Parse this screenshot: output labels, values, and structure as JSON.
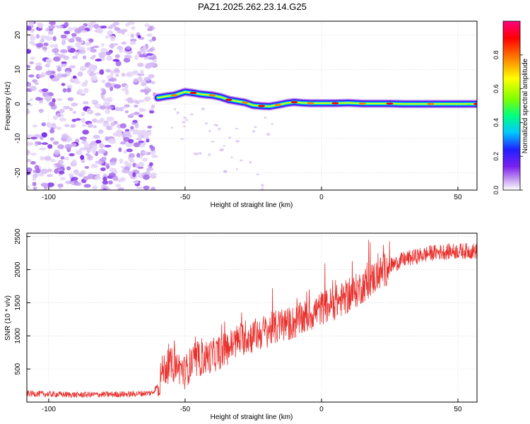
{
  "figure": {
    "title": "PAZ1.2025.262.23.14.G25"
  },
  "chart_data": [
    {
      "type": "heatmap",
      "title": "PAZ1.2025.262.23.14.G25",
      "xlabel": "Height of straight line (km)",
      "ylabel": "Frequency (Hz)",
      "xlim": [
        -108,
        57
      ],
      "ylim": [
        -25,
        24
      ],
      "xticks": [
        -100,
        -50,
        0,
        50
      ],
      "yticks": [
        -20,
        -10,
        0,
        10,
        20
      ],
      "grid": true,
      "colorbar": {
        "label": "Normalized spectral amplitude",
        "range": [
          0,
          1
        ],
        "ticks": [
          0.0,
          0.2,
          0.4,
          0.6,
          0.8
        ],
        "colormap": [
          "#ffffff",
          "#c8a0f0",
          "#7b20f0",
          "#2020ff",
          "#00c8ff",
          "#00ff80",
          "#80ff00",
          "#ffff00",
          "#ff8000",
          "#ff0000",
          "#ff0080"
        ]
      },
      "noise_region": {
        "x_range": [
          -108,
          -61
        ],
        "amplitude": "low"
      },
      "ridge": {
        "x": [
          -60,
          -57,
          -54,
          -50,
          -47,
          -44,
          -40,
          -37,
          -34,
          -31,
          -28,
          -25,
          -22,
          -19,
          -16,
          -13,
          -10,
          -7,
          -4,
          0,
          5,
          10,
          15,
          20,
          25,
          30,
          40,
          50,
          57
        ],
        "y": [
          1.8,
          2.2,
          2.5,
          3.5,
          3.2,
          2.8,
          2.5,
          2.0,
          1.2,
          0.8,
          0.4,
          -0.4,
          -0.6,
          -0.7,
          -0.3,
          0.2,
          0.5,
          0.3,
          0.2,
          0.2,
          0.2,
          0.3,
          0.1,
          0.1,
          0.1,
          0.0,
          0.0,
          0.0,
          0.0
        ]
      }
    },
    {
      "type": "line",
      "xlabel": "Height of straight line (km)",
      "ylabel": "SNR (10 * v/v)",
      "xlim": [
        -108,
        57
      ],
      "ylim": [
        0,
        2550
      ],
      "xticks": [
        -100,
        -50,
        0,
        50
      ],
      "yticks": [
        500,
        1000,
        1500,
        2000,
        2500
      ],
      "grid": true,
      "series": [
        {
          "color": "#e8302c",
          "x": [
            -108,
            -100,
            -90,
            -80,
            -70,
            -62,
            -60,
            -58,
            -55,
            -52,
            -50,
            -48,
            -46,
            -44,
            -40,
            -35,
            -30,
            -25,
            -20,
            -15,
            -10,
            -5,
            0,
            5,
            10,
            15,
            20,
            25,
            30,
            35,
            40,
            45,
            50,
            55,
            57
          ],
          "y": [
            130,
            120,
            110,
            115,
            120,
            140,
            250,
            500,
            560,
            520,
            450,
            580,
            600,
            650,
            700,
            800,
            950,
            1000,
            1080,
            1150,
            1200,
            1300,
            1420,
            1500,
            1600,
            1750,
            1900,
            2050,
            2150,
            2200,
            2250,
            2270,
            2280,
            2280,
            2280
          ]
        }
      ]
    }
  ]
}
